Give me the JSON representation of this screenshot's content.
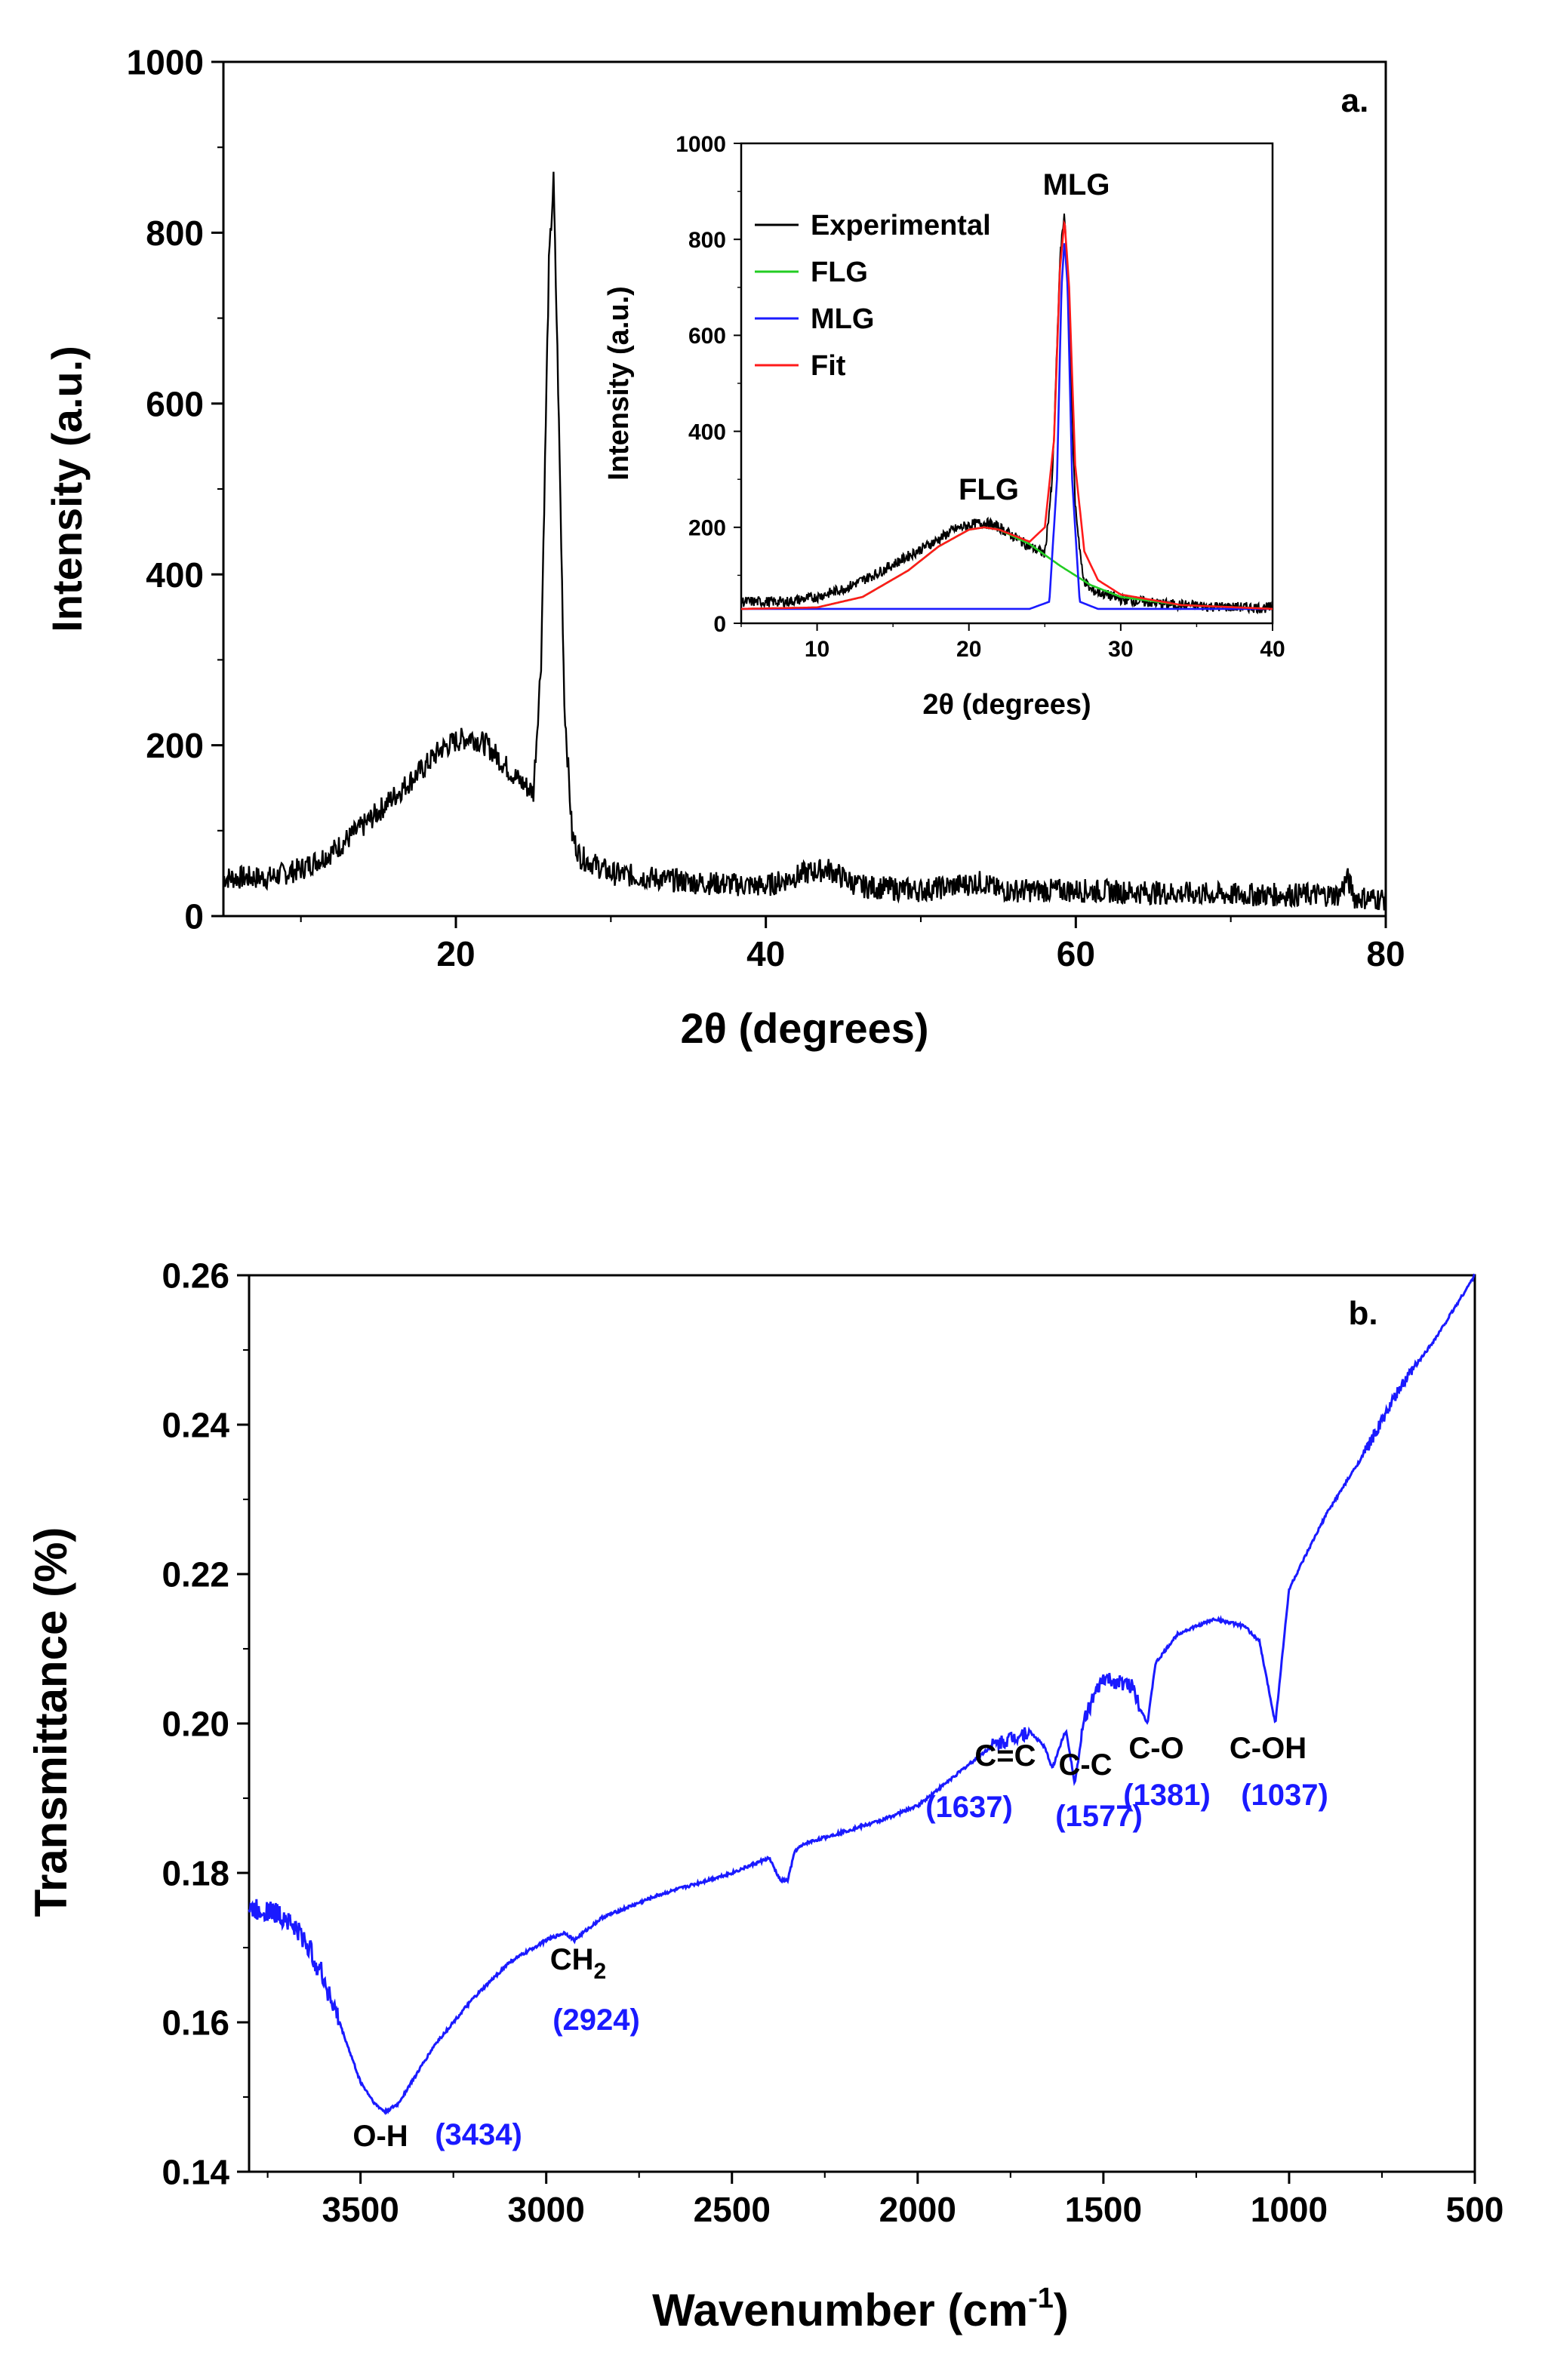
{
  "chart_data": [
    {
      "panel_label": "a.",
      "type": "line",
      "xlabel": "2θ (degrees)",
      "ylabel": "Intensity (a.u.)",
      "xlim": [
        5,
        80
      ],
      "ylim": [
        0,
        1000
      ],
      "x_ticks": [
        "20",
        "40",
        "60",
        "80"
      ],
      "y_ticks": [
        "0",
        "200",
        "400",
        "600",
        "800",
        "1000"
      ],
      "grid": false,
      "series": [
        {
          "color": "#000000",
          "x": [
            5,
            8,
            10,
            12,
            14,
            16,
            18,
            19,
            20,
            21,
            22,
            23,
            24,
            25,
            25.5,
            26.0,
            26.3,
            26.6,
            27.0,
            27.5,
            28,
            30,
            35,
            40,
            42.5,
            44,
            46,
            50,
            54,
            55,
            60,
            70,
            77,
            77.5,
            78,
            80
          ],
          "y": [
            45,
            45,
            55,
            75,
            105,
            140,
            175,
            195,
            205,
            210,
            200,
            180,
            160,
            145,
            300,
            760,
            860,
            620,
            250,
            95,
            70,
            50,
            40,
            35,
            50,
            55,
            35,
            30,
            40,
            30,
            30,
            25,
            25,
            45,
            22,
            20
          ]
        }
      ],
      "inset": {
        "type": "line",
        "xlabel": "2θ (degrees)",
        "ylabel": "Intensity (a.u.)",
        "xlim": [
          5,
          40
        ],
        "ylim": [
          0,
          1000
        ],
        "x_ticks": [
          "10",
          "20",
          "30",
          "40"
        ],
        "y_ticks": [
          "0",
          "200",
          "400",
          "600",
          "800",
          "1000"
        ],
        "legend_position": "top-left",
        "legend": [
          "Experimental",
          "FLG",
          "MLG",
          "Fit"
        ],
        "annotations": [
          "FLG",
          "MLG"
        ],
        "series": [
          {
            "name": "Experimental",
            "color": "#000000",
            "x": [
              5,
              8,
              10,
              12,
              14,
              16,
              18,
              19,
              20,
              21,
              22,
              23,
              24,
              25,
              25.5,
              26.0,
              26.3,
              26.6,
              27.0,
              27.5,
              28,
              30,
              33,
              36,
              40
            ],
            "y": [
              45,
              45,
              55,
              75,
              105,
              140,
              175,
              195,
              205,
              210,
              200,
              180,
              160,
              145,
              300,
              760,
              860,
              620,
              250,
              95,
              70,
              50,
              40,
              35,
              32
            ]
          },
          {
            "name": "FLG",
            "color": "#22cc22",
            "x": [
              5,
              10,
              13,
              16,
              18,
              20,
              21,
              22,
              24,
              26,
              28,
              30,
              34,
              40
            ],
            "y": [
              30,
              33,
              55,
              110,
              160,
              195,
              200,
              195,
              165,
              120,
              80,
              55,
              38,
              30
            ]
          },
          {
            "name": "MLG",
            "color": "#1a1aff",
            "x": [
              5,
              24,
              25.3,
              25.8,
              26.1,
              26.3,
              26.5,
              26.8,
              27.3,
              28.5,
              40
            ],
            "y": [
              30,
              30,
              45,
              300,
              700,
              800,
              700,
              300,
              45,
              30,
              30
            ]
          },
          {
            "name": "Fit",
            "color": "#ff1a1a",
            "x": [
              5,
              10,
              13,
              16,
              18,
              20,
              21,
              22,
              24,
              25,
              25.6,
              26.0,
              26.3,
              26.6,
              27.0,
              27.6,
              28.5,
              30,
              34,
              40
            ],
            "y": [
              30,
              33,
              55,
              110,
              160,
              195,
              200,
              195,
              170,
              200,
              380,
              740,
              840,
              700,
              330,
              150,
              90,
              60,
              38,
              30
            ]
          }
        ]
      }
    },
    {
      "panel_label": "b.",
      "type": "line",
      "xlabel": "Wavenumber (cm",
      "xlabel_superscript": "-1",
      "xlabel_suffix": ")",
      "ylabel": "Transmittance (%)",
      "xlim": [
        3800,
        500
      ],
      "ylim": [
        0.14,
        0.26
      ],
      "x_ticks": [
        "3500",
        "3000",
        "2500",
        "2000",
        "1500",
        "1000",
        "500"
      ],
      "y_ticks": [
        "0.14",
        "0.16",
        "0.18",
        "0.20",
        "0.22",
        "0.24",
        "0.26"
      ],
      "grid": false,
      "series": [
        {
          "color": "#1a1aff",
          "x": [
            3800,
            3750,
            3700,
            3650,
            3600,
            3550,
            3500,
            3460,
            3434,
            3400,
            3350,
            3300,
            3250,
            3200,
            3100,
            3000,
            2950,
            2924,
            2900,
            2850,
            2700,
            2500,
            2400,
            2370,
            2350,
            2330,
            2300,
            2100,
            2000,
            1900,
            1800,
            1700,
            1660,
            1637,
            1610,
            1600,
            1577,
            1550,
            1500,
            1420,
            1400,
            1381,
            1360,
            1300,
            1200,
            1120,
            1080,
            1037,
            1000,
            950,
            900,
            800,
            700,
            600,
            500
          ],
          "y": [
            0.175,
            0.175,
            0.174,
            0.171,
            0.166,
            0.159,
            0.152,
            0.149,
            0.148,
            0.149,
            0.153,
            0.157,
            0.16,
            0.163,
            0.168,
            0.171,
            0.172,
            0.171,
            0.172,
            0.174,
            0.177,
            0.18,
            0.182,
            0.179,
            0.179,
            0.183,
            0.184,
            0.187,
            0.189,
            0.193,
            0.197,
            0.199,
            0.197,
            0.194,
            0.198,
            0.199,
            0.192,
            0.201,
            0.206,
            0.205,
            0.202,
            0.2,
            0.208,
            0.212,
            0.214,
            0.213,
            0.211,
            0.2,
            0.218,
            0.223,
            0.228,
            0.236,
            0.245,
            0.252,
            0.26
          ]
        }
      ],
      "annotations": [
        {
          "label": "O-H",
          "value": "(3434)"
        },
        {
          "label": "CH2",
          "value": "(2924)"
        },
        {
          "label": "C=C",
          "value": "(1637)"
        },
        {
          "label": "C-C",
          "value": "(1577)"
        },
        {
          "label": "C-O",
          "value": "(1381)"
        },
        {
          "label": "C-OH",
          "value": "(1037)"
        }
      ]
    }
  ]
}
